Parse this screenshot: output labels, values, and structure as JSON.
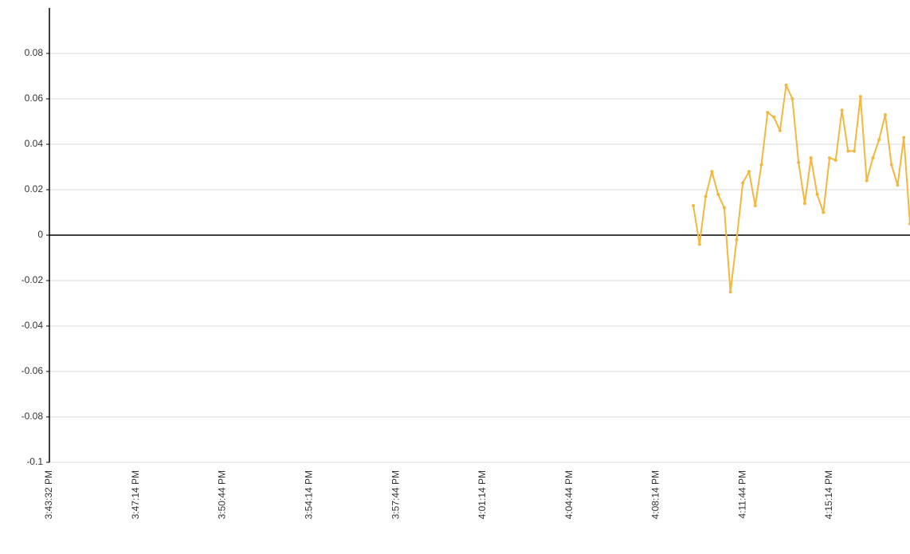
{
  "chart_data": {
    "type": "line",
    "categories": [
      "3:43:32 PM",
      null,
      null,
      null,
      null,
      null,
      null,
      null,
      null,
      null,
      null,
      null,
      null,
      null,
      "3:47:14 PM",
      null,
      null,
      null,
      null,
      null,
      null,
      null,
      null,
      null,
      null,
      null,
      null,
      null,
      "3:50:44 PM",
      null,
      null,
      null,
      null,
      null,
      null,
      null,
      null,
      null,
      null,
      null,
      null,
      null,
      "3:54:14 PM",
      null,
      null,
      null,
      null,
      null,
      null,
      null,
      null,
      null,
      null,
      null,
      null,
      null,
      "3:57:44 PM",
      null,
      null,
      null,
      null,
      null,
      null,
      null,
      null,
      null,
      null,
      null,
      null,
      null,
      "4:01:14 PM",
      null,
      null,
      null,
      null,
      null,
      null,
      null,
      null,
      null,
      null,
      null,
      null,
      null,
      "4:04:44 PM",
      null,
      null,
      null,
      null,
      null,
      null,
      null,
      null,
      null,
      null,
      null,
      null,
      null,
      "4:08:14 PM",
      null,
      null,
      null,
      null,
      null,
      null,
      null,
      null,
      null,
      null,
      null,
      null,
      null,
      "4:11:44 PM",
      null,
      null,
      null,
      null,
      null,
      null,
      null,
      null,
      null,
      null,
      null,
      null,
      null,
      "4:15:14 PM",
      null,
      null,
      null,
      null,
      null,
      null,
      null,
      null,
      null,
      null,
      null,
      null,
      null
    ],
    "series": [
      {
        "color": "#f4b73e",
        "values": [
          null,
          null,
          null,
          null,
          null,
          null,
          null,
          null,
          null,
          null,
          null,
          null,
          null,
          null,
          null,
          null,
          null,
          null,
          null,
          null,
          null,
          null,
          null,
          null,
          null,
          null,
          null,
          null,
          null,
          null,
          null,
          null,
          null,
          null,
          null,
          null,
          null,
          null,
          null,
          null,
          null,
          null,
          null,
          null,
          null,
          null,
          null,
          null,
          null,
          null,
          null,
          null,
          null,
          null,
          null,
          null,
          null,
          null,
          null,
          null,
          null,
          null,
          null,
          null,
          null,
          null,
          null,
          null,
          null,
          null,
          null,
          null,
          null,
          null,
          null,
          null,
          null,
          null,
          null,
          null,
          null,
          null,
          null,
          null,
          null,
          null,
          null,
          null,
          null,
          null,
          null,
          null,
          null,
          null,
          null,
          null,
          null,
          null,
          null,
          null,
          null,
          null,
          null,
          null,
          0.013,
          -0.004,
          0.017,
          0.028,
          0.018,
          0.012,
          -0.025,
          -0.002,
          0.023,
          0.028,
          0.013,
          0.031,
          0.054,
          0.052,
          0.046,
          0.066,
          0.06,
          0.032,
          0.014,
          0.034,
          0.018,
          0.01,
          0.034,
          0.033,
          0.055,
          0.037,
          0.037,
          0.061,
          0.024,
          0.034,
          0.042,
          0.053,
          0.031,
          0.022,
          0.043,
          0.005
        ]
      }
    ],
    "ylim": [
      -0.1,
      0.1
    ],
    "yticks": [
      -0.1,
      -0.08,
      -0.06,
      -0.04,
      -0.02,
      0,
      0.02,
      0.04,
      0.06,
      0.08
    ],
    "grid": true
  }
}
